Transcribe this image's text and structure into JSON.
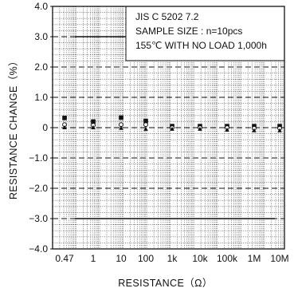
{
  "chart_data": {
    "type": "scatter",
    "title": "",
    "xlabel": "RESISTANCE（Ω）",
    "ylabel": "RESISTANCE  CHANGE（%）",
    "x_scale": "categorical-log",
    "categories": [
      "0.47",
      "1",
      "10",
      "100",
      "1k",
      "10k",
      "100k",
      "1M",
      "10M"
    ],
    "ylim": [
      -4.0,
      4.0
    ],
    "yticks": [
      4.0,
      3.0,
      2.0,
      1.0,
      0,
      -1.0,
      -2.0,
      -3.0,
      -4.0
    ],
    "ytick_labels": [
      "4.0",
      "3.0",
      "2.0",
      "1.0",
      "0",
      "−1.0",
      "−2.0",
      "−3.0",
      "−4.0"
    ],
    "grid": {
      "minor": "dotted",
      "major_y": "dashed"
    },
    "limit_lines": [
      3.0,
      -3.0
    ],
    "annotation": [
      "JIS C 5202 7.2",
      "SAMPLE SIZE : n=10pcs",
      "155℃ WITH NO LOAD 1,000h"
    ],
    "series": [
      {
        "marker": "square",
        "values": [
          0.32,
          0.2,
          0.33,
          0.22,
          0.05,
          0.05,
          0.05,
          0.05,
          0.05
        ]
      },
      {
        "marker": "circle",
        "values": [
          0.1,
          0.08,
          0.1,
          0.1,
          0.0,
          0.0,
          0.0,
          -0.02,
          -0.02
        ]
      },
      {
        "marker": "triangle",
        "values": [
          0.0,
          0.0,
          -0.02,
          -0.05,
          -0.05,
          -0.05,
          -0.08,
          -0.1,
          -0.1
        ]
      }
    ]
  }
}
